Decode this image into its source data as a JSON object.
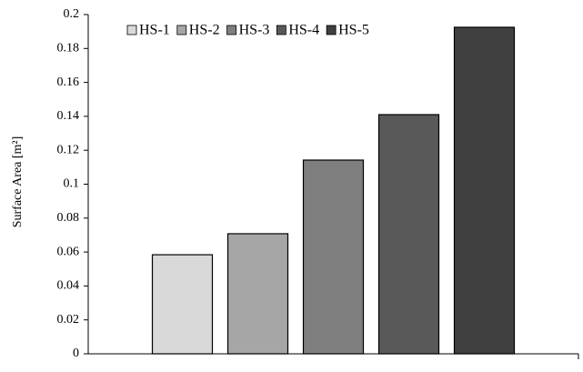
{
  "chart_data": {
    "type": "bar",
    "y_label": "Surface Area [m²]",
    "categories": [
      null
    ],
    "series": [
      {
        "name": "HS-1",
        "color": "#d9d9d9",
        "values": [
          0.0584
        ]
      },
      {
        "name": "HS-2",
        "color": "#a6a6a6",
        "values": [
          0.0708
        ]
      },
      {
        "name": "HS-3",
        "color": "#7f7f7f",
        "values": [
          0.1142
        ]
      },
      {
        "name": "HS-4",
        "color": "#595959",
        "values": [
          0.141
        ]
      },
      {
        "name": "HS-5",
        "color": "#404040",
        "values": [
          0.1925
        ]
      }
    ],
    "ylim": [
      0,
      0.2
    ],
    "yticks": [
      0,
      0.02,
      0.04,
      0.06,
      0.08,
      0.1,
      0.12,
      0.14,
      0.16,
      0.18,
      0.2
    ],
    "grid": false
  }
}
